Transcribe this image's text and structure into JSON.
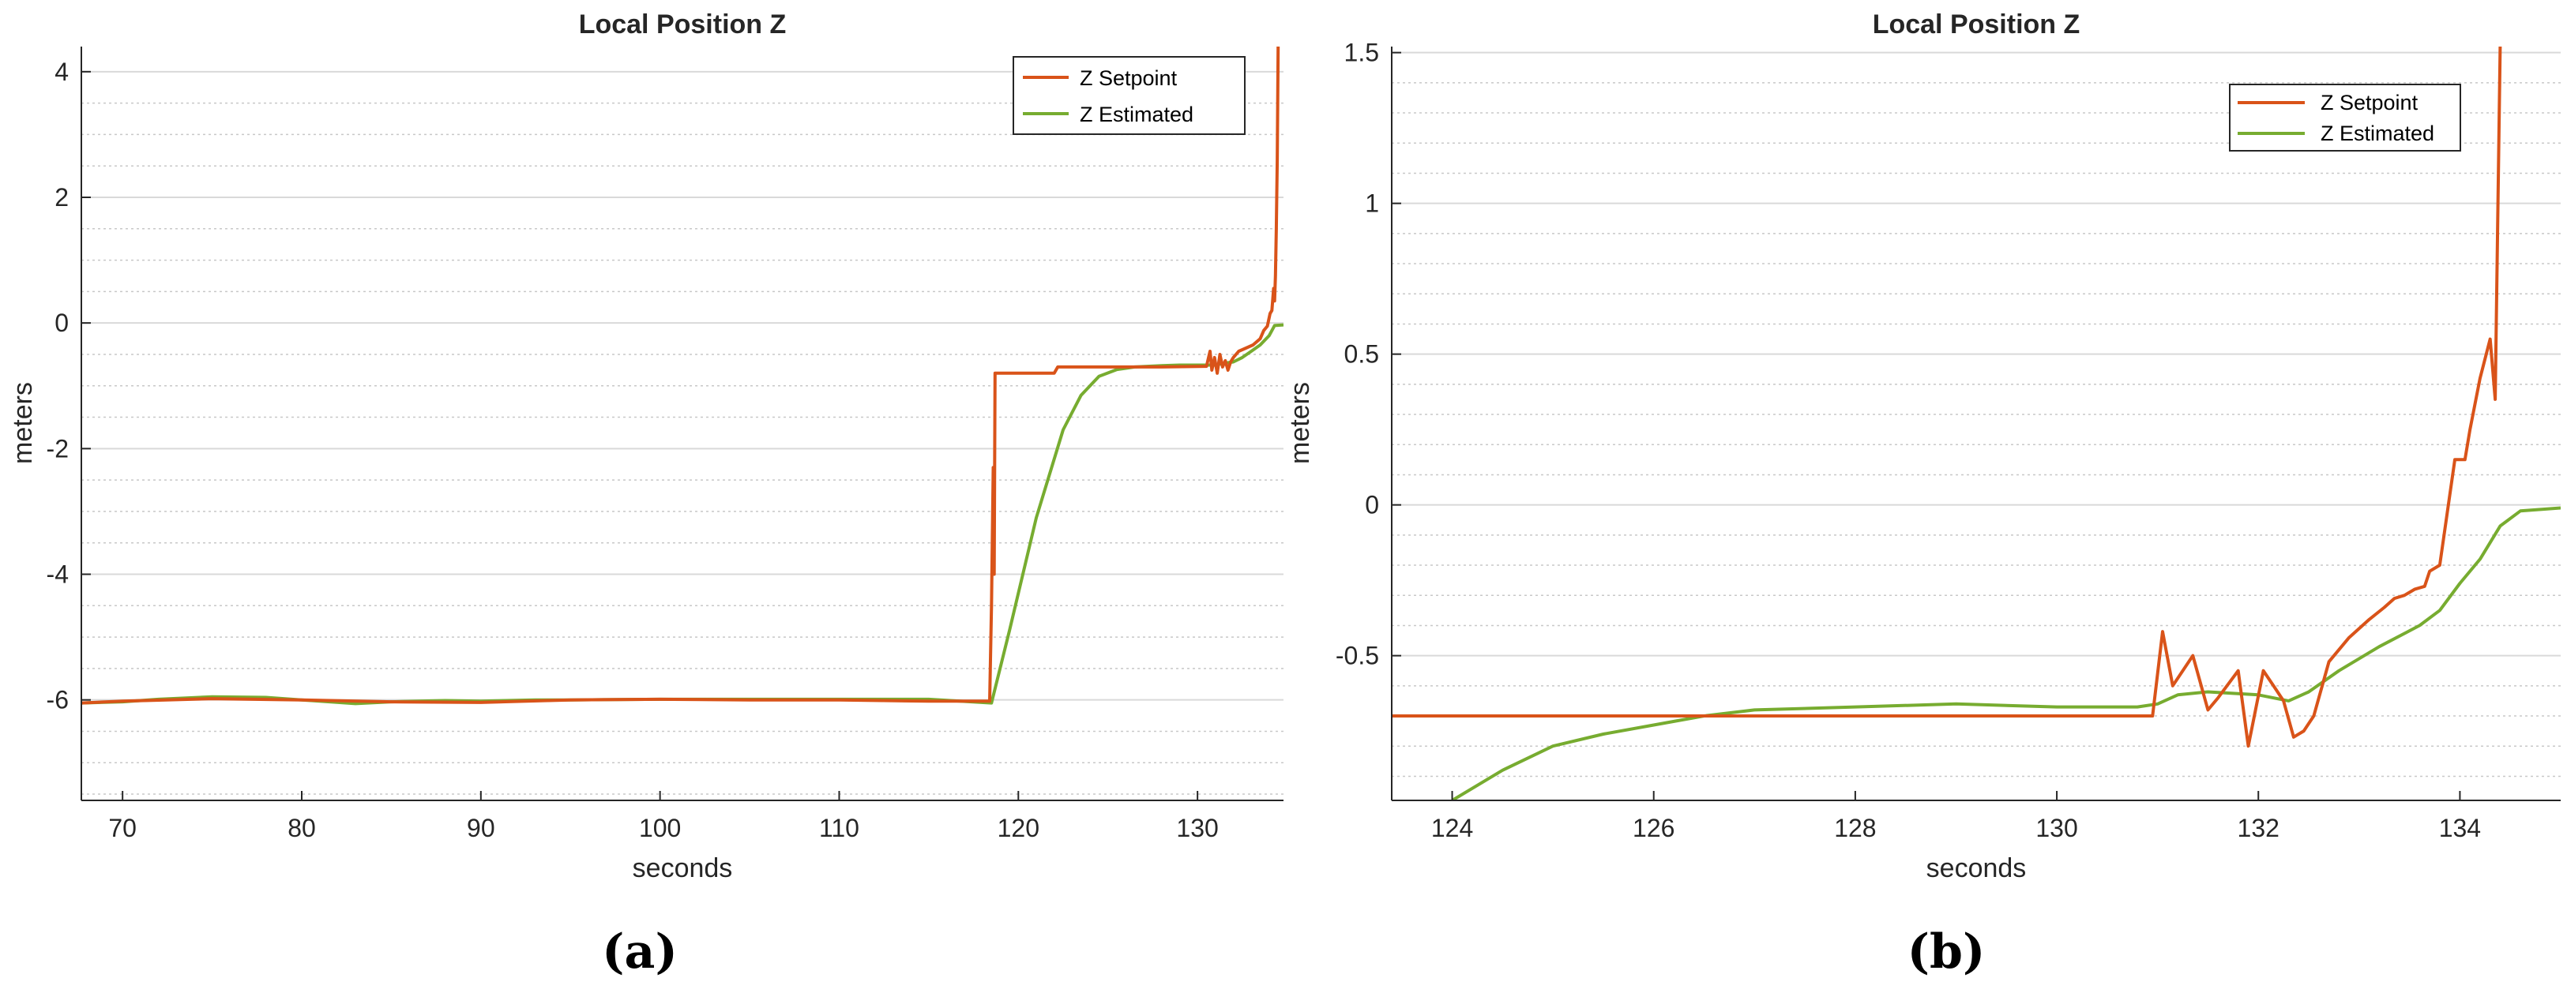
{
  "chart_data": [
    {
      "type": "line",
      "title": "Local Position Z",
      "xlabel": "seconds",
      "ylabel": "meters",
      "panel_label": "(a)",
      "xlim": [
        67.7,
        134.8
      ],
      "ylim": [
        -7.6,
        4.4
      ],
      "xticks": [
        70,
        80,
        90,
        100,
        110,
        120,
        130
      ],
      "yticks": [
        -6,
        -4,
        -2,
        0,
        2,
        4
      ],
      "minor_yticks": [
        -7.5,
        -7,
        -6.5,
        -5.5,
        -5,
        -4.5,
        -3.5,
        -3,
        -2.5,
        -1.5,
        -1,
        -0.5,
        0.5,
        1,
        1.5,
        2.5,
        3,
        3.5
      ],
      "grid": "on",
      "legend_position": "top-right",
      "series": [
        {
          "name": "Z Setpoint",
          "color": "#d95319",
          "x": [
            67.7,
            70,
            75,
            80,
            85,
            90,
            95,
            100,
            105,
            110,
            115,
            118.4,
            118.5,
            118.6,
            118.65,
            118.7,
            122,
            122.2,
            128,
            130.5,
            130.7,
            130.8,
            130.95,
            131.1,
            131.25,
            131.4,
            131.55,
            131.7,
            131.85,
            132,
            132.3,
            132.7,
            133.1,
            133.5,
            133.7,
            133.9,
            134.05,
            134.15,
            134.25,
            134.3,
            134.35,
            134.4,
            134.45,
            134.5
          ],
          "y": [
            -6.05,
            -6.02,
            -5.98,
            -6.0,
            -6.03,
            -6.04,
            -6.0,
            -5.99,
            -6.0,
            -6.0,
            -6.02,
            -6.02,
            -4.5,
            -2.3,
            -4.0,
            -0.8,
            -0.8,
            -0.7,
            -0.7,
            -0.69,
            -0.45,
            -0.75,
            -0.55,
            -0.8,
            -0.5,
            -0.7,
            -0.6,
            -0.75,
            -0.62,
            -0.55,
            -0.45,
            -0.4,
            -0.35,
            -0.25,
            -0.12,
            -0.05,
            0.15,
            0.2,
            0.55,
            0.35,
            0.75,
            1.5,
            2.6,
            4.4
          ]
        },
        {
          "name": "Z Estimated",
          "color": "#77ac30",
          "x": [
            67.7,
            70,
            72,
            75,
            78,
            80,
            83,
            85,
            88,
            90,
            93,
            95,
            100,
            105,
            110,
            115,
            118.5,
            119.5,
            121,
            122.5,
            123.5,
            124.5,
            125.5,
            126.5,
            128,
            129,
            130,
            131,
            131.5,
            132,
            132.5,
            133,
            133.5,
            134,
            134.3,
            134.8
          ],
          "y": [
            -6.05,
            -6.03,
            -5.99,
            -5.95,
            -5.96,
            -6.0,
            -6.06,
            -6.03,
            -6.01,
            -6.02,
            -6.0,
            -6.0,
            -5.99,
            -5.99,
            -5.99,
            -5.99,
            -6.05,
            -4.9,
            -3.1,
            -1.7,
            -1.15,
            -0.85,
            -0.74,
            -0.7,
            -0.68,
            -0.67,
            -0.67,
            -0.67,
            -0.64,
            -0.62,
            -0.55,
            -0.45,
            -0.35,
            -0.2,
            -0.04,
            -0.03
          ]
        }
      ]
    },
    {
      "type": "line",
      "title": "Local Position Z",
      "xlabel": "seconds",
      "ylabel": "meters",
      "panel_label": "(b)",
      "xlim": [
        123.4,
        135.0
      ],
      "ylim": [
        -0.98,
        1.52
      ],
      "xticks": [
        124,
        126,
        128,
        130,
        132,
        134
      ],
      "yticks": [
        -0.5,
        0,
        0.5,
        1,
        1.5
      ],
      "minor_yticks": [
        -0.9,
        -0.8,
        -0.7,
        -0.6,
        -0.4,
        -0.3,
        -0.2,
        -0.1,
        0.1,
        0.2,
        0.3,
        0.4,
        0.6,
        0.7,
        0.8,
        0.9,
        1.1,
        1.2,
        1.3,
        1.4
      ],
      "grid": "on",
      "legend_position": "top-right",
      "series": [
        {
          "name": "Z Setpoint",
          "color": "#d95319",
          "x": [
            123.4,
            130.95,
            131.05,
            131.15,
            131.35,
            131.5,
            131.6,
            131.8,
            131.9,
            132.05,
            132.15,
            132.25,
            132.35,
            132.45,
            132.55,
            132.7,
            132.9,
            133.1,
            133.25,
            133.35,
            133.45,
            133.55,
            133.65,
            133.7,
            133.8,
            133.95,
            134.05,
            134.1,
            134.2,
            134.3,
            134.35,
            134.4
          ],
          "y": [
            -0.7,
            -0.7,
            -0.42,
            -0.6,
            -0.5,
            -0.68,
            -0.64,
            -0.55,
            -0.8,
            -0.55,
            -0.6,
            -0.65,
            -0.77,
            -0.75,
            -0.7,
            -0.52,
            -0.44,
            -0.38,
            -0.34,
            -0.31,
            -0.3,
            -0.28,
            -0.27,
            -0.22,
            -0.2,
            0.15,
            0.15,
            0.25,
            0.42,
            0.55,
            0.35,
            1.52
          ]
        },
        {
          "name": "Z Estimated",
          "color": "#77ac30",
          "x": [
            124.0,
            124.5,
            125.0,
            125.5,
            126.0,
            126.5,
            127.0,
            128.0,
            129.0,
            130.0,
            130.8,
            131.0,
            131.2,
            131.5,
            132.0,
            132.3,
            132.5,
            132.8,
            133.2,
            133.6,
            133.8,
            134.0,
            134.2,
            134.4,
            134.6,
            135.0
          ],
          "y": [
            -0.98,
            -0.88,
            -0.8,
            -0.76,
            -0.73,
            -0.7,
            -0.68,
            -0.67,
            -0.66,
            -0.67,
            -0.67,
            -0.66,
            -0.63,
            -0.62,
            -0.63,
            -0.65,
            -0.62,
            -0.55,
            -0.47,
            -0.4,
            -0.35,
            -0.26,
            -0.18,
            -0.07,
            -0.02,
            -0.01
          ]
        }
      ]
    }
  ]
}
